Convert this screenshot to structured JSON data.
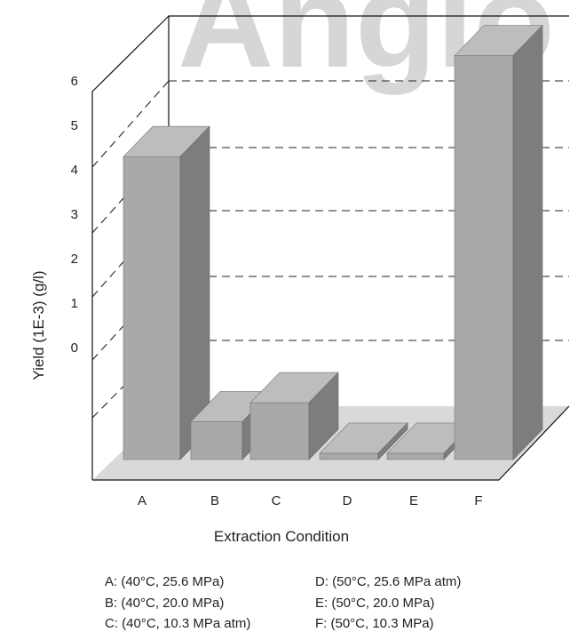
{
  "chart_data": {
    "type": "bar",
    "title": "",
    "xlabel": "Extraction Condition",
    "ylabel": "Yield (1E-3) (g/l)",
    "y_ticks": [
      "0",
      "1",
      "2",
      "3",
      "4",
      "5",
      "6"
    ],
    "ylim": [
      0,
      6
    ],
    "grid": true,
    "categories": [
      "A",
      "B",
      "C",
      "D",
      "E",
      "F"
    ],
    "series": [
      {
        "values": [
          4.8,
          0.6,
          0.9,
          0.1,
          0.1,
          6.4
        ]
      }
    ],
    "bar_color": "#a9a9a9",
    "watermark": "Anglo",
    "legend_entries": [
      "A: (40°C, 25.6 MPa)",
      "B: (40°C, 20.0 MPa)",
      "C: (40°C, 10.3 MPa atm)",
      "D: (50°C, 25.6 MPa atm)",
      "E: (50°C, 20.0 MPa)",
      "F: (50°C, 10.3 MPa)"
    ]
  }
}
